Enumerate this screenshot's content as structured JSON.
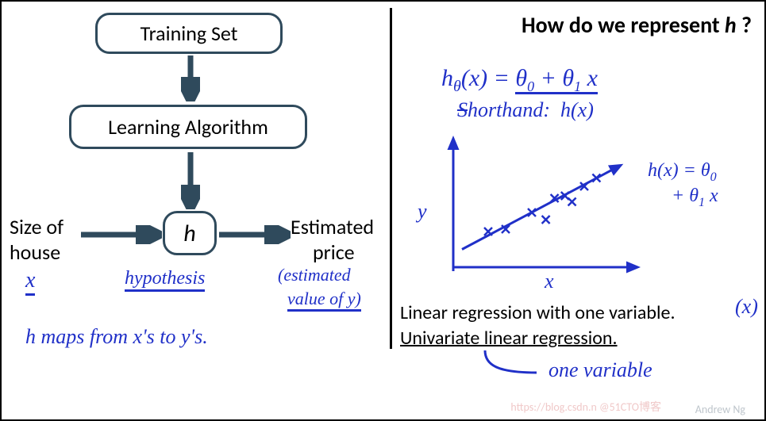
{
  "layout": {
    "divider_color": "#000000",
    "box_border_color": "#2f4a5c",
    "handwriting_color": "#2030c8",
    "typed_font": "Segoe UI",
    "hand_font": "Segoe Script",
    "arrow_color": "#2f4a5c",
    "arrow_width": 6
  },
  "left": {
    "box_training": "Training Set",
    "box_learning": "Learning Algorithm",
    "box_h": "h",
    "label_size": "Size of",
    "label_house": "house",
    "label_estimated": "Estimated",
    "label_price": "price",
    "hand_x": "x",
    "hand_hypothesis": "hypothesis",
    "hand_est1": "(estimated",
    "hand_est2": "value of y)",
    "hand_mapline": "h  maps  from  x's  to  y's."
  },
  "right": {
    "title_prefix": "How do we represent ",
    "title_h": "h",
    "title_suffix": " ?",
    "eq_lhs": "h",
    "eq_theta_sub": "θ",
    "eq_x": "(x)",
    "eq_eq": " = ",
    "eq_t0": "θ",
    "eq_sub0": "0",
    "eq_plus": " + ",
    "eq_t1": "θ",
    "eq_sub1": "1",
    "eq_xterm": " x",
    "shorthand_label": "Shorthand:",
    "shorthand_val": "h(x)",
    "plot": {
      "type": "scatter+line",
      "x_label": "x",
      "y_label": "y",
      "axis_color": "#2030c8",
      "line_color": "#2030c8",
      "marker_color": "#2030c8",
      "marker": "x",
      "xlim": [
        0,
        10
      ],
      "ylim": [
        0,
        10
      ],
      "line_from": [
        0.5,
        1.5
      ],
      "line_to": [
        9.5,
        8.5
      ],
      "points": [
        [
          2.0,
          3.0
        ],
        [
          3.0,
          3.2
        ],
        [
          4.5,
          4.6
        ],
        [
          5.3,
          4.0
        ],
        [
          5.8,
          5.8
        ],
        [
          6.4,
          6.0
        ],
        [
          6.8,
          5.5
        ],
        [
          7.5,
          6.8
        ],
        [
          8.2,
          7.5
        ]
      ]
    },
    "line_eq_a": "h(x) = θ",
    "line_eq_a0": "0",
    "line_eq_b": "+ θ",
    "line_eq_b1": "1",
    "line_eq_c": " x",
    "caption1": "Linear regression with one variable.",
    "caption2": "Univariate linear regression.",
    "hand_paren_x": "(x)",
    "hand_onevar": "one  variable"
  },
  "footer": {
    "author": "Andrew Ng",
    "watermark": "https://blog.csdn.n @51CTO博客"
  }
}
